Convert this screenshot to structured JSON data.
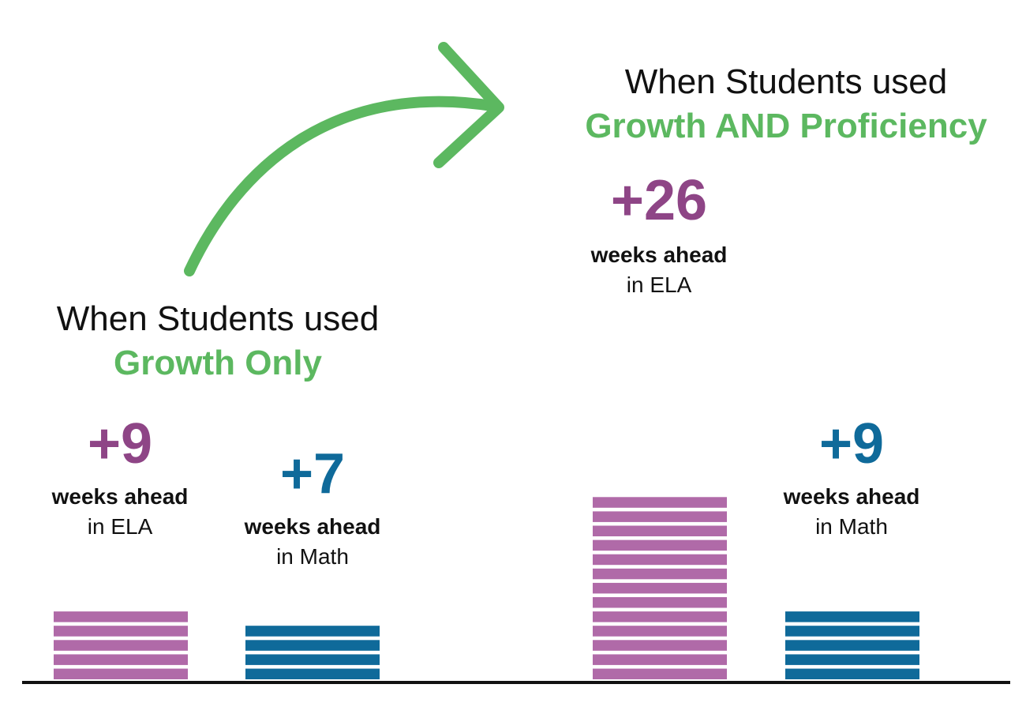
{
  "chart_data": {
    "type": "bar",
    "unit_label": "weeks ahead",
    "colors": {
      "ela": "#b06aa8",
      "math": "#0f6a9a",
      "accent": "#5cb860",
      "axis": "#111111"
    },
    "groups": [
      {
        "title": "When Students used",
        "subtitle": "Growth Only",
        "bars": [
          {
            "value": 9,
            "value_label": "+9",
            "subject": "in ELA",
            "series": "ela"
          },
          {
            "value": 7,
            "value_label": "+7",
            "subject": "in Math",
            "series": "math"
          }
        ]
      },
      {
        "title": "When Students used",
        "subtitle": "Growth AND Proficiency",
        "bars": [
          {
            "value": 26,
            "value_label": "+26",
            "subject": "in ELA",
            "series": "ela"
          },
          {
            "value": 9,
            "value_label": "+9",
            "subject": "in Math",
            "series": "math"
          }
        ]
      }
    ]
  }
}
